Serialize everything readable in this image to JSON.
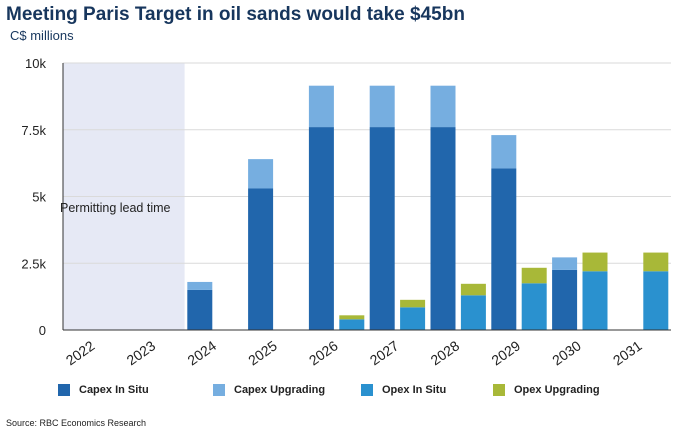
{
  "title": "Meeting Paris Target in oil sands would take $45bn",
  "subtitle": "C$ millions",
  "source": "Source: RBC Economics Research",
  "colors": {
    "capex_in_situ": "#2166ac",
    "capex_upgrading": "#76aee0",
    "opex_in_situ": "#2a91cf",
    "opex_upgrading": "#a8b838",
    "shade": "#e6e9f5",
    "grid": "#dadada"
  },
  "chart_data": {
    "type": "bar",
    "stacked": true,
    "title": "Meeting Paris Target in oil sands would take $45bn",
    "ylabel": "C$ millions",
    "ylim": [
      0,
      10000
    ],
    "yticks": [
      0,
      2500,
      5000,
      7500,
      10000
    ],
    "ytick_labels": [
      "0",
      "2.5k",
      "5k",
      "7.5k",
      "10k"
    ],
    "xtick_labels": [
      "2022",
      "2023",
      "2024",
      "2025",
      "2026",
      "2027",
      "2028",
      "2029",
      "2030",
      "2031"
    ],
    "annotation": "Permitting lead time",
    "legend_position": "bottom",
    "bars": [
      {
        "slot": 4,
        "series": "capex",
        "in_situ": 1500,
        "upgrading": 300
      },
      {
        "slot": 6,
        "series": "capex",
        "in_situ": 5300,
        "upgrading": 1100
      },
      {
        "slot": 8,
        "series": "capex",
        "in_situ": 7600,
        "upgrading": 1550
      },
      {
        "slot": 9,
        "series": "opex",
        "in_situ": 400,
        "upgrading": 150
      },
      {
        "slot": 10,
        "series": "capex",
        "in_situ": 7600,
        "upgrading": 1550
      },
      {
        "slot": 11,
        "series": "opex",
        "in_situ": 850,
        "upgrading": 280
      },
      {
        "slot": 12,
        "series": "capex",
        "in_situ": 7600,
        "upgrading": 1550
      },
      {
        "slot": 13,
        "series": "opex",
        "in_situ": 1300,
        "upgrading": 430
      },
      {
        "slot": 14,
        "series": "capex",
        "in_situ": 6050,
        "upgrading": 1250
      },
      {
        "slot": 15,
        "series": "opex",
        "in_situ": 1750,
        "upgrading": 580
      },
      {
        "slot": 16,
        "series": "capex",
        "in_situ": 2250,
        "upgrading": 470
      },
      {
        "slot": 17,
        "series": "opex",
        "in_situ": 2200,
        "upgrading": 700
      },
      {
        "slot": 19,
        "series": "opex",
        "in_situ": 2200,
        "upgrading": 700
      }
    ],
    "legend": [
      {
        "key": "capex_in_situ",
        "label": "Capex In Situ"
      },
      {
        "key": "capex_upgrading",
        "label": "Capex Upgrading"
      },
      {
        "key": "opex_in_situ",
        "label": "Opex In Situ"
      },
      {
        "key": "opex_upgrading",
        "label": "Opex Upgrading"
      }
    ]
  }
}
